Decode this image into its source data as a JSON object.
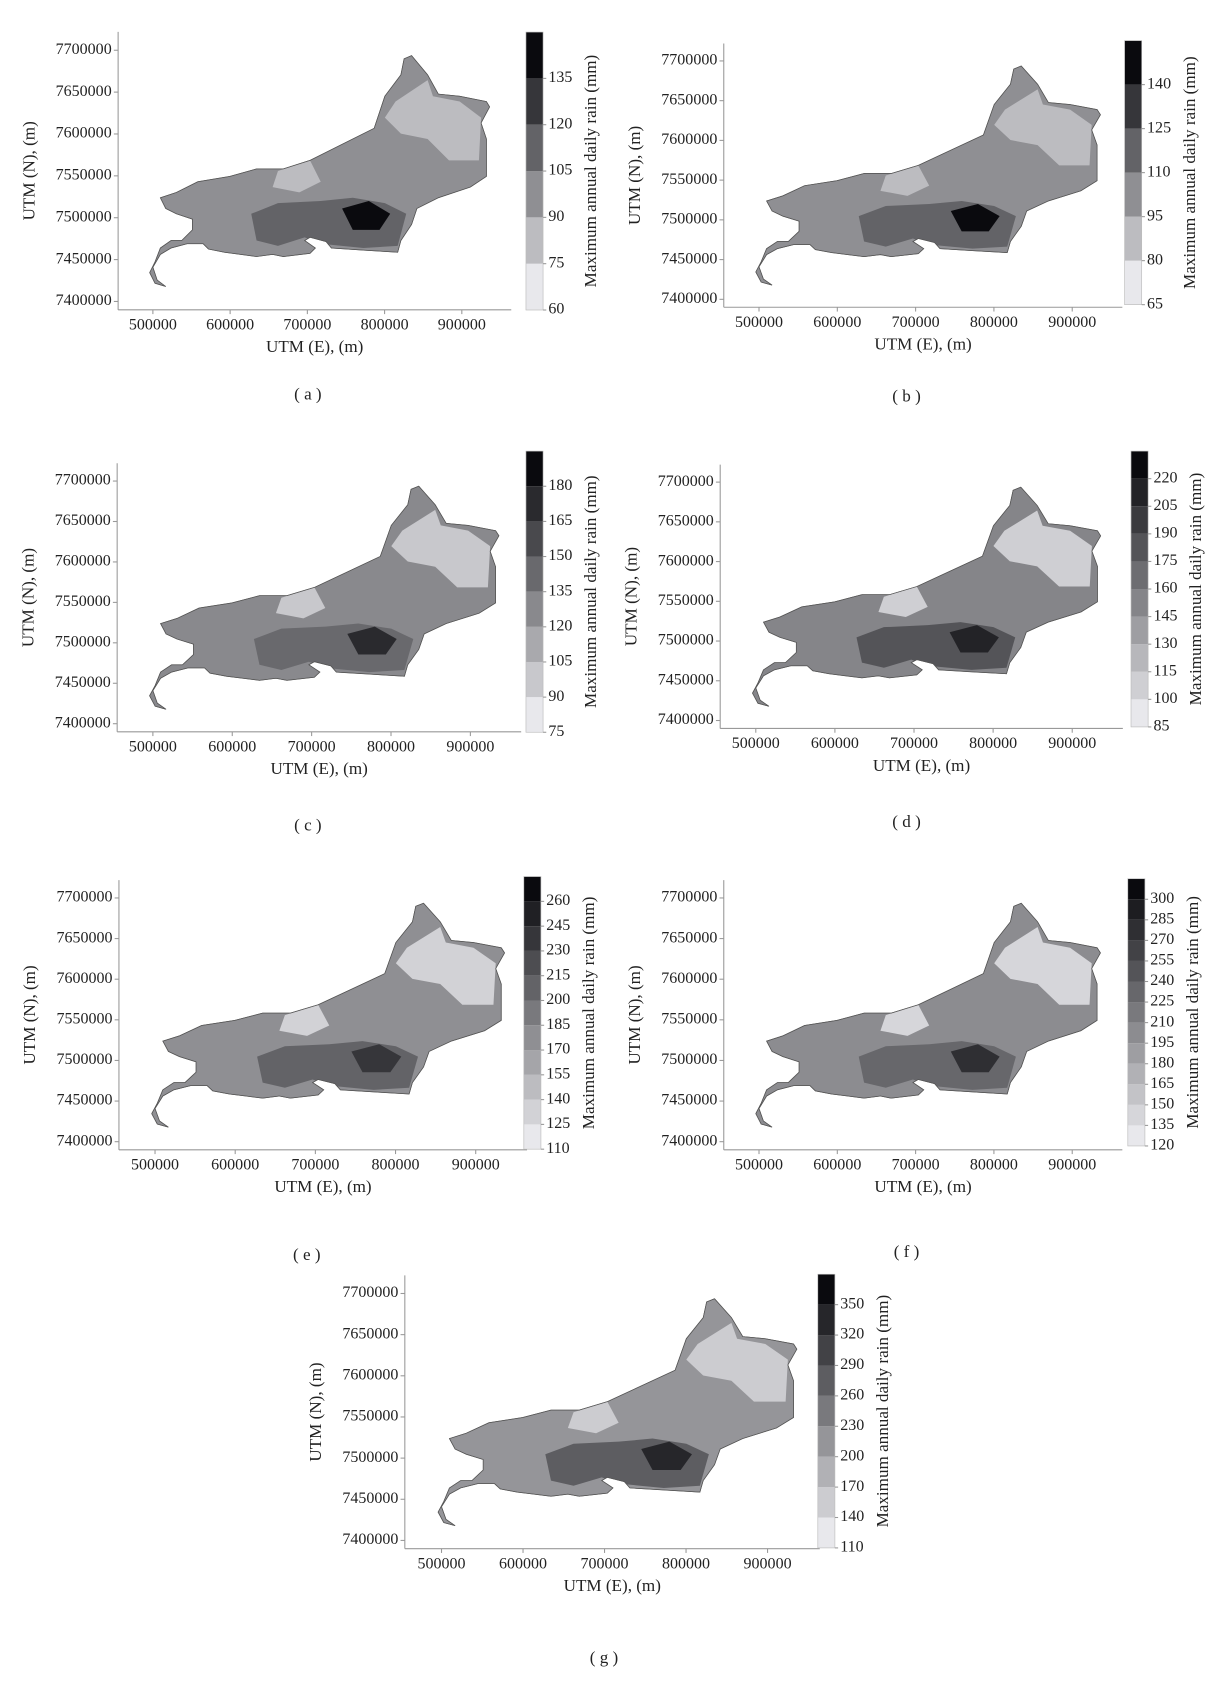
{
  "chart_data": [
    {
      "type": "map",
      "panel_label": "( a )",
      "xlabel": "UTM (E),  (m)",
      "ylabel": "UTM (N),  (m)",
      "xlim": [
        455000,
        964000
      ],
      "ylim": [
        7390000,
        7722000
      ],
      "xticks": [
        500000,
        600000,
        700000,
        800000,
        900000
      ],
      "yticks": [
        7400000,
        7450000,
        7500000,
        7550000,
        7600000,
        7650000,
        7700000
      ],
      "colorbar": {
        "label": "Maximum annual daily rain (mm)",
        "lim": [
          60,
          150
        ],
        "ticks": [
          60,
          75,
          90,
          105,
          120,
          135
        ]
      }
    },
    {
      "type": "map",
      "panel_label": "( b )",
      "xlabel": "UTM (E),  (m)",
      "ylabel": "UTM (N),  (m)",
      "xlim": [
        455000,
        964000
      ],
      "ylim": [
        7390000,
        7722000
      ],
      "xticks": [
        500000,
        600000,
        700000,
        800000,
        900000
      ],
      "yticks": [
        7400000,
        7450000,
        7500000,
        7550000,
        7600000,
        7650000,
        7700000
      ],
      "colorbar": {
        "label": "Maximum annual daily rain (mm)",
        "lim": [
          65,
          155
        ],
        "ticks": [
          65,
          80,
          95,
          110,
          125,
          140
        ]
      }
    },
    {
      "type": "map",
      "panel_label": "( c )",
      "xlabel": "UTM (E),  (m)",
      "ylabel": "UTM (N),  (m)",
      "xlim": [
        455000,
        964000
      ],
      "ylim": [
        7390000,
        7722000
      ],
      "xticks": [
        500000,
        600000,
        700000,
        800000,
        900000
      ],
      "yticks": [
        7400000,
        7450000,
        7500000,
        7550000,
        7600000,
        7650000,
        7700000
      ],
      "colorbar": {
        "label": "Maximum annual daily rain (mm)",
        "lim": [
          75,
          195
        ],
        "ticks": [
          75,
          90,
          105,
          120,
          135,
          150,
          165,
          180
        ]
      }
    },
    {
      "type": "map",
      "panel_label": "( d )",
      "xlabel": "UTM (E),  (m)",
      "ylabel": "UTM (N),  (m)",
      "xlim": [
        455000,
        964000
      ],
      "ylim": [
        7390000,
        7722000
      ],
      "xticks": [
        500000,
        600000,
        700000,
        800000,
        900000
      ],
      "yticks": [
        7400000,
        7450000,
        7500000,
        7550000,
        7600000,
        7650000,
        7700000
      ],
      "colorbar": {
        "label": "Maximum annual daily rain (mm)",
        "lim": [
          85,
          235
        ],
        "ticks": [
          85,
          100,
          115,
          130,
          145,
          160,
          175,
          190,
          205,
          220
        ]
      }
    },
    {
      "type": "map",
      "panel_label": "( e )",
      "xlabel": "UTM (E),  (m)",
      "ylabel": "UTM (N),  (m)",
      "xlim": [
        455000,
        964000
      ],
      "ylim": [
        7390000,
        7722000
      ],
      "xticks": [
        500000,
        600000,
        700000,
        800000,
        900000
      ],
      "yticks": [
        7400000,
        7450000,
        7500000,
        7550000,
        7600000,
        7650000,
        7700000
      ],
      "colorbar": {
        "label": "Maximum annual daily rain (mm)",
        "lim": [
          110,
          275
        ],
        "ticks": [
          110,
          125,
          140,
          155,
          170,
          185,
          200,
          215,
          230,
          245,
          260
        ]
      }
    },
    {
      "type": "map",
      "panel_label": "( f )",
      "xlabel": "UTM (E),  (m)",
      "ylabel": "UTM (N),  (m)",
      "xlim": [
        455000,
        964000
      ],
      "ylim": [
        7390000,
        7722000
      ],
      "xticks": [
        500000,
        600000,
        700000,
        800000,
        900000
      ],
      "yticks": [
        7400000,
        7450000,
        7500000,
        7550000,
        7600000,
        7650000,
        7700000
      ],
      "colorbar": {
        "label": "Maximum annual daily rain (mm)",
        "lim": [
          120,
          315
        ],
        "ticks": [
          120,
          135,
          150,
          165,
          180,
          195,
          210,
          225,
          240,
          255,
          270,
          285,
          300
        ]
      }
    },
    {
      "type": "map",
      "panel_label": "( g )",
      "xlabel": "UTM (E),  (m)",
      "ylabel": "UTM (N),  (m)",
      "xlim": [
        455000,
        964000
      ],
      "ylim": [
        7390000,
        7722000
      ],
      "xticks": [
        500000,
        600000,
        700000,
        800000,
        900000
      ],
      "yticks": [
        7400000,
        7450000,
        7500000,
        7550000,
        7600000,
        7650000,
        7700000
      ],
      "colorbar": {
        "label": "Maximum annual daily rain (mm)",
        "lim": [
          110,
          380
        ],
        "ticks": [
          110,
          140,
          170,
          200,
          230,
          260,
          290,
          320,
          350
        ]
      }
    }
  ]
}
